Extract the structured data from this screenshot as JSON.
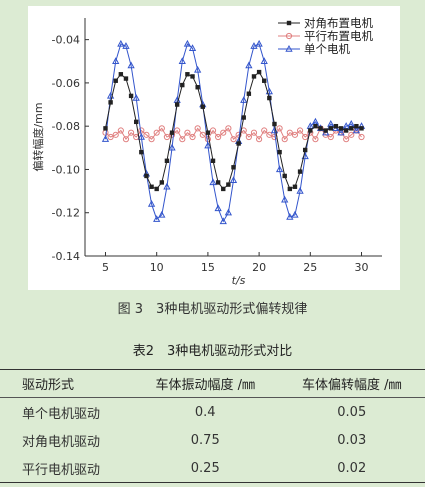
{
  "figure_caption": "图 3　3种电机驱动形式偏转规律",
  "table_caption": "表2　3种电机驱动形式对比",
  "table": {
    "headers": [
      "驱动形式",
      "车体振动幅度 /㎜",
      "车体偏转幅度 /㎜"
    ],
    "rows": [
      [
        "单个电机驱动",
        "0.4",
        "0.05"
      ],
      [
        "对角电机驱动",
        "0.75",
        "0.03"
      ],
      [
        "平行电机驱动",
        "0.25",
        "0.02"
      ]
    ]
  },
  "chart_data": {
    "type": "line",
    "title": "",
    "xlabel": "t/s",
    "ylabel": "偏转幅度/mm",
    "xlim": [
      3,
      32
    ],
    "ylim": [
      -0.14,
      -0.03
    ],
    "xticks": [
      5,
      10,
      15,
      20,
      25,
      30
    ],
    "yticks": [
      -0.04,
      -0.06,
      -0.08,
      -0.1,
      -0.12,
      -0.14
    ],
    "x_tick_labels": [
      "5",
      "10",
      "15",
      "20",
      "25",
      "30"
    ],
    "y_tick_labels": [
      "-0.04",
      "-0.06",
      "-0.08",
      "-0.10",
      "-0.12",
      "-0.14"
    ],
    "legend_position": "top-right",
    "x": [
      5.0,
      5.5,
      6.0,
      6.5,
      7.0,
      7.5,
      8.0,
      8.5,
      9.0,
      9.5,
      10.0,
      10.5,
      11.0,
      11.5,
      12.0,
      12.5,
      13.0,
      13.5,
      14.0,
      14.5,
      15.0,
      15.5,
      16.0,
      16.5,
      17.0,
      17.5,
      18.0,
      18.5,
      19.0,
      19.5,
      20.0,
      20.5,
      21.0,
      21.5,
      22.0,
      22.5,
      23.0,
      23.5,
      24.0,
      24.5,
      25.0,
      25.5,
      26.0,
      26.5,
      27.0,
      27.5,
      28.0,
      28.5,
      29.0,
      29.5,
      30.0
    ],
    "series": [
      {
        "name": "对角布置电机",
        "color": "#222222",
        "marker": "square",
        "values": [
          -0.081,
          -0.069,
          -0.059,
          -0.056,
          -0.058,
          -0.066,
          -0.078,
          -0.092,
          -0.103,
          -0.108,
          -0.109,
          -0.106,
          -0.096,
          -0.083,
          -0.07,
          -0.061,
          -0.056,
          -0.057,
          -0.062,
          -0.071,
          -0.083,
          -0.096,
          -0.106,
          -0.109,
          -0.107,
          -0.099,
          -0.088,
          -0.076,
          -0.065,
          -0.057,
          -0.055,
          -0.059,
          -0.067,
          -0.079,
          -0.092,
          -0.103,
          -0.109,
          -0.108,
          -0.101,
          -0.091,
          -0.082,
          -0.08,
          -0.081,
          -0.082,
          -0.081,
          -0.08,
          -0.081,
          -0.082,
          -0.081,
          -0.08,
          -0.081
        ]
      },
      {
        "name": "平行布置电机",
        "color": "#e08080",
        "marker": "circle",
        "values": [
          -0.083,
          -0.085,
          -0.084,
          -0.082,
          -0.086,
          -0.083,
          -0.085,
          -0.082,
          -0.084,
          -0.086,
          -0.083,
          -0.081,
          -0.085,
          -0.084,
          -0.082,
          -0.086,
          -0.083,
          -0.085,
          -0.081,
          -0.084,
          -0.086,
          -0.082,
          -0.085,
          -0.083,
          -0.081,
          -0.086,
          -0.084,
          -0.082,
          -0.085,
          -0.083,
          -0.086,
          -0.082,
          -0.084,
          -0.085,
          -0.081,
          -0.086,
          -0.083,
          -0.084,
          -0.082,
          -0.085,
          -0.083,
          -0.086,
          -0.081,
          -0.084,
          -0.085,
          -0.082,
          -0.083,
          -0.086,
          -0.084,
          -0.082,
          -0.085
        ]
      },
      {
        "name": "单个电机",
        "color": "#3355cc",
        "marker": "triangle",
        "values": [
          -0.086,
          -0.066,
          -0.05,
          -0.042,
          -0.043,
          -0.052,
          -0.067,
          -0.085,
          -0.102,
          -0.116,
          -0.123,
          -0.121,
          -0.108,
          -0.09,
          -0.068,
          -0.05,
          -0.042,
          -0.044,
          -0.054,
          -0.07,
          -0.089,
          -0.106,
          -0.118,
          -0.124,
          -0.12,
          -0.105,
          -0.087,
          -0.068,
          -0.052,
          -0.043,
          -0.042,
          -0.05,
          -0.064,
          -0.082,
          -0.1,
          -0.114,
          -0.122,
          -0.121,
          -0.11,
          -0.094,
          -0.08,
          -0.078,
          -0.081,
          -0.083,
          -0.079,
          -0.081,
          -0.083,
          -0.08,
          -0.079,
          -0.082,
          -0.08
        ]
      }
    ]
  }
}
